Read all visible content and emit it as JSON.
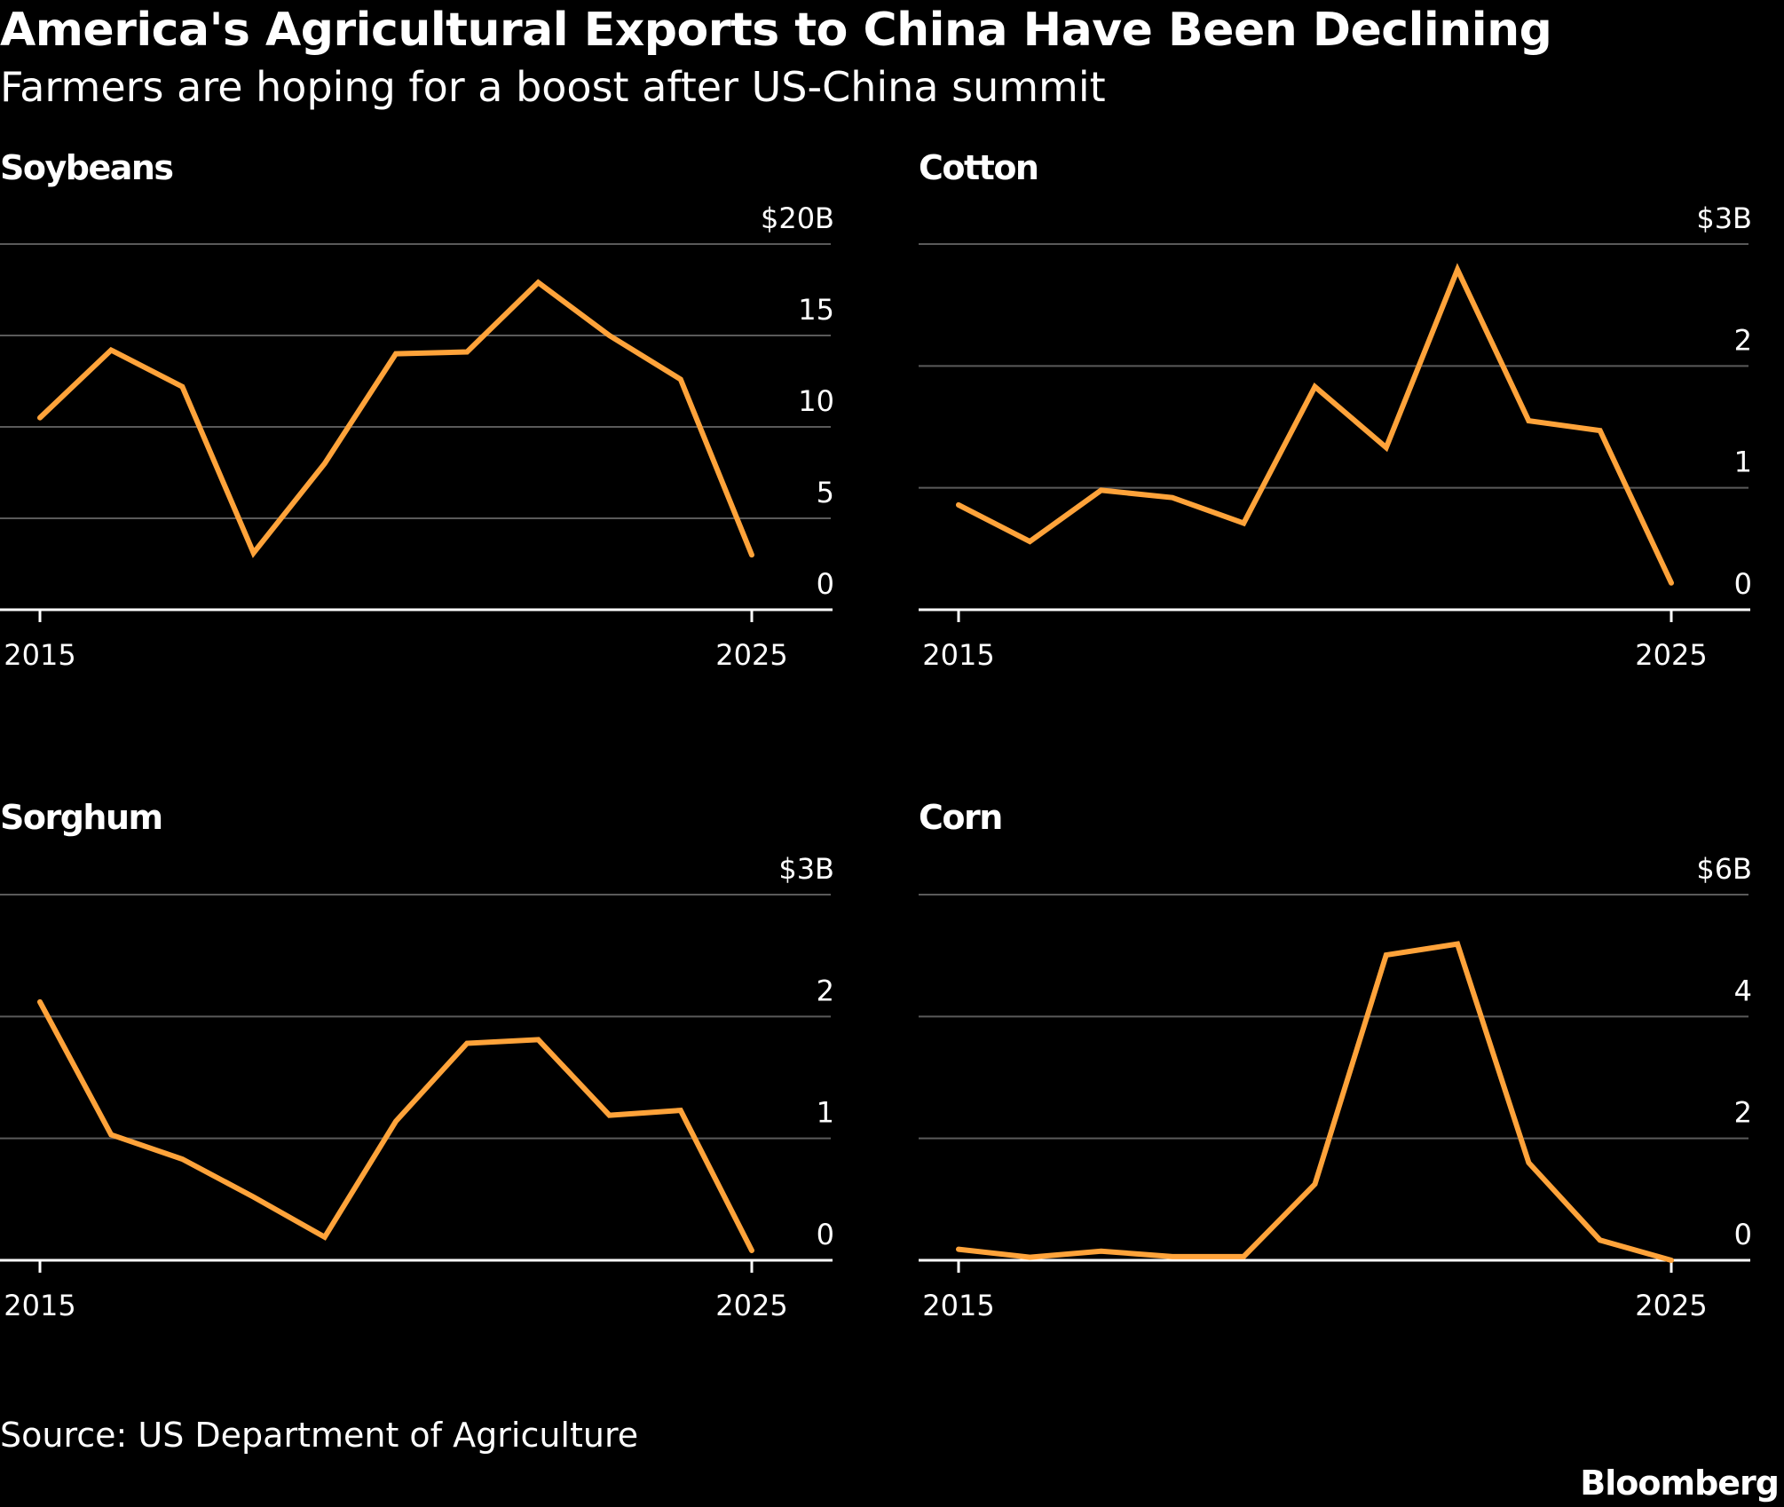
{
  "header": {
    "title": "America's Agricultural Exports to China Have Been Declining",
    "subtitle": "Farmers are hoping for a boost after US-China summit"
  },
  "footer": {
    "source": "Source: US Department of Agriculture",
    "brand": "Bloomberg"
  },
  "colors": {
    "background": "#000000",
    "line": "#ffa33a",
    "grid": "#5a5a5a",
    "axis": "#ffffff",
    "text": "#ffffff"
  },
  "chart_data": [
    {
      "type": "line",
      "title": "Soybeans",
      "x": [
        2015,
        2016,
        2017,
        2018,
        2019,
        2020,
        2021,
        2022,
        2023,
        2024,
        2025
      ],
      "series": [
        {
          "values": [
            10.5,
            14.2,
            12.2,
            3.1,
            8.0,
            14.0,
            14.1,
            17.9,
            15.0,
            12.6,
            3.0
          ]
        }
      ],
      "ylim": [
        0,
        20
      ],
      "yticks": [
        0,
        5,
        10,
        15,
        20
      ],
      "ytick_labels": [
        "0",
        "5",
        "10",
        "15",
        "$20B"
      ],
      "xticks": [
        2015,
        2025
      ],
      "xtick_labels": [
        "2015",
        "2025"
      ],
      "grid": true
    },
    {
      "type": "line",
      "title": "Cotton",
      "x": [
        2015,
        2016,
        2017,
        2018,
        2019,
        2020,
        2021,
        2022,
        2023,
        2024,
        2025
      ],
      "series": [
        {
          "values": [
            0.86,
            0.56,
            0.98,
            0.92,
            0.71,
            1.83,
            1.33,
            2.79,
            1.55,
            1.47,
            0.22
          ]
        }
      ],
      "ylim": [
        0,
        3
      ],
      "yticks": [
        0,
        1,
        2,
        3
      ],
      "ytick_labels": [
        "0",
        "1",
        "2",
        "$3B"
      ],
      "xticks": [
        2015,
        2025
      ],
      "xtick_labels": [
        "2015",
        "2025"
      ],
      "grid": true
    },
    {
      "type": "line",
      "title": "Sorghum",
      "x": [
        2015,
        2016,
        2017,
        2018,
        2019,
        2020,
        2021,
        2022,
        2023,
        2024,
        2025
      ],
      "series": [
        {
          "values": [
            2.12,
            1.03,
            0.83,
            0.52,
            0.19,
            1.14,
            1.78,
            1.81,
            1.19,
            1.23,
            0.08
          ]
        }
      ],
      "ylim": [
        0,
        3
      ],
      "yticks": [
        0,
        1,
        2,
        3
      ],
      "ytick_labels": [
        "0",
        "1",
        "2",
        "$3B"
      ],
      "xticks": [
        2015,
        2025
      ],
      "xtick_labels": [
        "2015",
        "2025"
      ],
      "grid": true
    },
    {
      "type": "line",
      "title": "Corn",
      "x": [
        2015,
        2016,
        2017,
        2018,
        2019,
        2020,
        2021,
        2022,
        2023,
        2024,
        2025
      ],
      "series": [
        {
          "values": [
            0.18,
            0.05,
            0.15,
            0.06,
            0.06,
            1.25,
            5.01,
            5.19,
            1.6,
            0.33,
            0.0
          ]
        }
      ],
      "ylim": [
        0,
        6
      ],
      "yticks": [
        0,
        2,
        4,
        6
      ],
      "ytick_labels": [
        "0",
        "2",
        "4",
        "$6B"
      ],
      "xticks": [
        2015,
        2025
      ],
      "xtick_labels": [
        "2015",
        "2025"
      ],
      "grid": true
    }
  ]
}
